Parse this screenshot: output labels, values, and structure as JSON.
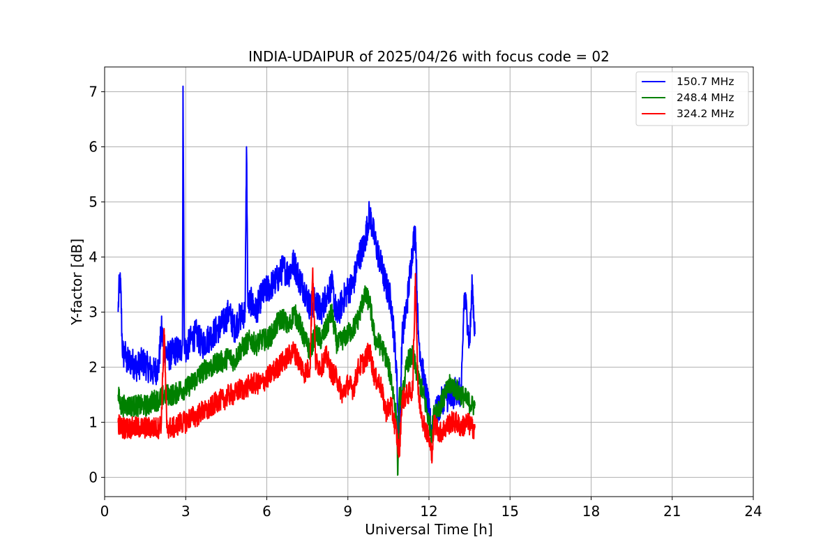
{
  "chart_data": {
    "type": "line",
    "title": "INDIA-UDAIPUR of 2025/04/26 with focus code = 02",
    "xlabel": "Universal Time [h]",
    "ylabel": "Y-factor [dB]",
    "xlim": [
      0,
      24
    ],
    "ylim": [
      -0.35,
      7.45
    ],
    "xticks": [
      0,
      3,
      6,
      9,
      12,
      15,
      18,
      21,
      24
    ],
    "yticks": [
      0,
      1,
      2,
      3,
      4,
      5,
      6,
      7
    ],
    "grid": true,
    "legend_position": "top-right",
    "series": [
      {
        "name": "150.7 MHz",
        "color": "#0000ff",
        "x": [
          0.5,
          0.55,
          0.6,
          0.65,
          0.7,
          0.75,
          0.8,
          1.0,
          1.2,
          1.4,
          1.6,
          1.8,
          2.0,
          2.1,
          2.2,
          2.4,
          2.6,
          2.8,
          2.88,
          2.9,
          2.95,
          3.0,
          3.2,
          3.4,
          3.6,
          3.8,
          4.0,
          4.2,
          4.4,
          4.6,
          4.8,
          5.0,
          5.2,
          5.25,
          5.3,
          5.4,
          5.6,
          5.8,
          6.0,
          6.2,
          6.4,
          6.6,
          6.8,
          7.0,
          7.2,
          7.4,
          7.6,
          7.8,
          8.0,
          8.2,
          8.4,
          8.6,
          8.8,
          9.0,
          9.2,
          9.4,
          9.6,
          9.8,
          10.0,
          10.2,
          10.4,
          10.6,
          10.8,
          10.9,
          11.0,
          11.2,
          11.4,
          11.5,
          11.6,
          11.8,
          12.0,
          12.1,
          12.2,
          12.4,
          12.6,
          12.8,
          13.0,
          13.2,
          13.3,
          13.4,
          13.5,
          13.6,
          13.7
        ],
        "y": [
          3.0,
          3.6,
          3.4,
          2.4,
          2.2,
          2.3,
          2.1,
          2.1,
          2.0,
          2.1,
          2.0,
          1.9,
          2.0,
          2.7,
          2.3,
          2.2,
          2.3,
          2.3,
          2.4,
          7.1,
          2.4,
          2.3,
          2.5,
          2.6,
          2.4,
          2.5,
          2.6,
          2.7,
          2.8,
          3.0,
          2.7,
          2.9,
          3.0,
          6.0,
          3.1,
          3.2,
          3.0,
          3.3,
          3.4,
          3.5,
          3.6,
          3.8,
          3.7,
          3.9,
          3.6,
          3.4,
          3.1,
          3.2,
          3.0,
          3.3,
          3.5,
          2.9,
          3.2,
          3.4,
          3.5,
          4.0,
          4.2,
          4.8,
          4.3,
          3.9,
          3.5,
          3.2,
          2.0,
          0.4,
          2.5,
          3.2,
          4.2,
          4.5,
          2.6,
          1.8,
          1.2,
          0.8,
          1.1,
          1.3,
          1.5,
          1.4,
          1.6,
          1.5,
          3.3,
          3.0,
          2.4,
          3.5,
          2.6
        ]
      },
      {
        "name": "248.4 MHz",
        "color": "#008000",
        "x": [
          0.5,
          0.6,
          0.8,
          1.0,
          1.2,
          1.4,
          1.6,
          1.8,
          2.0,
          2.2,
          2.4,
          2.6,
          2.8,
          3.0,
          3.2,
          3.4,
          3.6,
          3.8,
          4.0,
          4.2,
          4.4,
          4.6,
          4.8,
          5.0,
          5.2,
          5.4,
          5.6,
          5.8,
          6.0,
          6.2,
          6.4,
          6.6,
          6.8,
          7.0,
          7.2,
          7.4,
          7.6,
          7.8,
          8.0,
          8.2,
          8.4,
          8.6,
          8.8,
          9.0,
          9.2,
          9.4,
          9.6,
          9.8,
          10.0,
          10.2,
          10.4,
          10.6,
          10.8,
          10.85,
          10.9,
          11.0,
          11.2,
          11.4,
          11.6,
          11.8,
          12.0,
          12.1,
          12.2,
          12.4,
          12.6,
          12.8,
          13.0,
          13.2,
          13.4,
          13.6,
          13.7
        ],
        "y": [
          1.5,
          1.3,
          1.3,
          1.3,
          1.3,
          1.3,
          1.3,
          1.4,
          1.4,
          1.5,
          1.5,
          1.5,
          1.6,
          1.6,
          1.7,
          1.8,
          1.9,
          2.0,
          2.0,
          2.1,
          2.1,
          2.2,
          2.1,
          2.3,
          2.4,
          2.5,
          2.4,
          2.5,
          2.5,
          2.6,
          2.8,
          2.9,
          2.7,
          3.0,
          2.8,
          2.5,
          2.3,
          2.6,
          2.5,
          2.7,
          3.0,
          2.4,
          2.5,
          2.6,
          2.7,
          2.9,
          3.3,
          3.2,
          2.5,
          2.4,
          2.2,
          1.8,
          1.1,
          0.05,
          1.5,
          1.4,
          2.1,
          2.2,
          1.8,
          1.5,
          1.0,
          0.8,
          1.2,
          1.3,
          1.5,
          1.7,
          1.6,
          1.5,
          1.4,
          1.3,
          1.3
        ]
      },
      {
        "name": "324.2 MHz",
        "color": "#ff0000",
        "x": [
          0.5,
          0.6,
          0.8,
          1.0,
          1.2,
          1.4,
          1.6,
          1.8,
          2.0,
          2.1,
          2.2,
          2.3,
          2.4,
          2.6,
          2.8,
          3.0,
          3.2,
          3.4,
          3.6,
          3.8,
          4.0,
          4.2,
          4.4,
          4.6,
          4.8,
          5.0,
          5.2,
          5.4,
          5.6,
          5.8,
          6.0,
          6.2,
          6.4,
          6.6,
          6.8,
          7.0,
          7.2,
          7.4,
          7.6,
          7.7,
          7.8,
          8.0,
          8.2,
          8.4,
          8.6,
          8.8,
          9.0,
          9.2,
          9.4,
          9.6,
          9.8,
          10.0,
          10.2,
          10.4,
          10.6,
          10.8,
          10.9,
          11.0,
          11.2,
          11.4,
          11.5,
          11.6,
          11.8,
          12.0,
          12.1,
          12.2,
          12.4,
          12.6,
          12.8,
          13.0,
          13.2,
          13.4,
          13.6,
          13.7
        ],
        "y": [
          1.0,
          0.9,
          0.9,
          0.9,
          0.9,
          0.9,
          0.9,
          0.9,
          0.9,
          1.0,
          2.7,
          0.9,
          0.9,
          0.9,
          1.0,
          1.0,
          1.1,
          1.1,
          1.2,
          1.2,
          1.3,
          1.4,
          1.4,
          1.5,
          1.5,
          1.6,
          1.6,
          1.7,
          1.7,
          1.7,
          1.8,
          1.9,
          2.0,
          2.1,
          2.2,
          2.3,
          2.1,
          1.9,
          2.0,
          3.8,
          2.1,
          2.0,
          2.2,
          1.9,
          1.8,
          1.5,
          1.7,
          1.6,
          2.0,
          2.1,
          2.3,
          1.8,
          1.7,
          1.2,
          1.3,
          0.8,
          0.4,
          1.4,
          1.5,
          1.6,
          3.7,
          1.5,
          1.0,
          0.7,
          0.4,
          1.0,
          0.8,
          0.9,
          1.0,
          1.0,
          0.9,
          1.0,
          0.9,
          0.9
        ]
      }
    ]
  }
}
